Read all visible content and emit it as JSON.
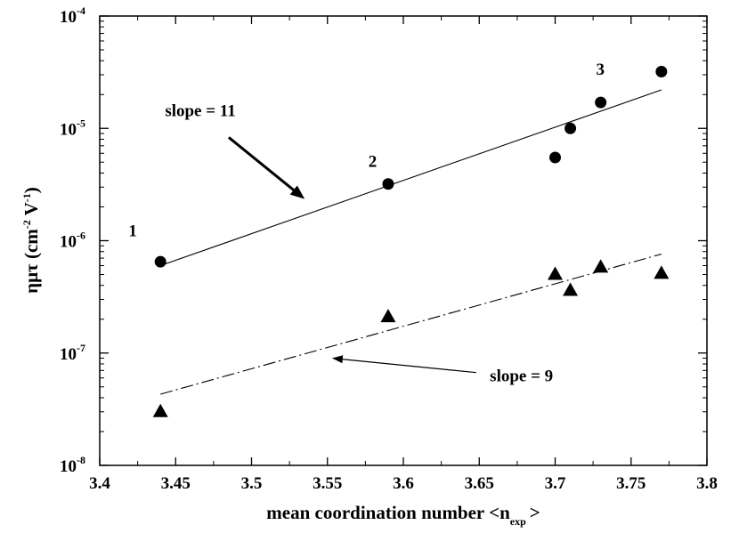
{
  "chart_data": {
    "type": "scatter",
    "xlabel": "mean coordination number <n",
    "xlabel_sub": "exp",
    "xlabel_end": ">",
    "ylabel_main": "ημτ (cm",
    "ylabel_sup1": "-2",
    "ylabel_mid": " V",
    "ylabel_sup2": "-1",
    "ylabel_end": ")",
    "xlim": [
      3.4,
      3.8
    ],
    "ylim": [
      1e-08,
      0.0001
    ],
    "y_scale": "log",
    "grid": false,
    "x_ticks": [
      "3.4",
      "3.45",
      "3.5",
      "3.55",
      "3.6",
      "3.65",
      "3.7",
      "3.75",
      "3.8"
    ],
    "y_ticks": [
      {
        "base": "10",
        "exp": "-8"
      },
      {
        "base": "10",
        "exp": "-7"
      },
      {
        "base": "10",
        "exp": "-6"
      },
      {
        "base": "10",
        "exp": "-5"
      },
      {
        "base": "10",
        "exp": "-4"
      }
    ],
    "series": [
      {
        "marker": "circle",
        "x": [
          3.44,
          3.59,
          3.7,
          3.71,
          3.73,
          3.77
        ],
        "y": [
          6.5e-07,
          3.2e-06,
          5.5e-06,
          1e-05,
          1.7e-05,
          3.2e-05
        ]
      },
      {
        "marker": "triangle",
        "x": [
          3.44,
          3.59,
          3.7,
          3.71,
          3.73,
          3.77
        ],
        "y": [
          3e-08,
          2.1e-07,
          5e-07,
          3.6e-07,
          5.8e-07,
          5.1e-07
        ]
      }
    ],
    "fit_lines": [
      {
        "style": "solid",
        "x": [
          3.44,
          3.77
        ],
        "y": [
          6e-07,
          2.2e-05
        ]
      },
      {
        "style": "dash-dot",
        "x": [
          3.44,
          3.77
        ],
        "y": [
          4.3e-08,
          7.6e-07
        ]
      }
    ],
    "annotations": [
      {
        "text": "slope = 11",
        "at": [
          3.443,
          1.28e-05
        ],
        "arrow_from": [
          3.485,
          8.3e-06
        ],
        "arrow_to": [
          3.535,
          2.35e-06
        ],
        "arrow": "thick"
      },
      {
        "text": "slope = 9",
        "at": [
          3.657,
          5.6e-08
        ],
        "arrow_from": [
          3.648,
          6.7e-08
        ],
        "arrow_to": [
          3.553,
          9e-08
        ],
        "arrow": "thin"
      },
      {
        "text": "1",
        "at": [
          3.419,
          1.1e-06
        ]
      },
      {
        "text": "2",
        "at": [
          3.577,
          4.55e-06
        ]
      },
      {
        "text": "3",
        "at": [
          3.727,
          3e-05
        ]
      }
    ]
  }
}
